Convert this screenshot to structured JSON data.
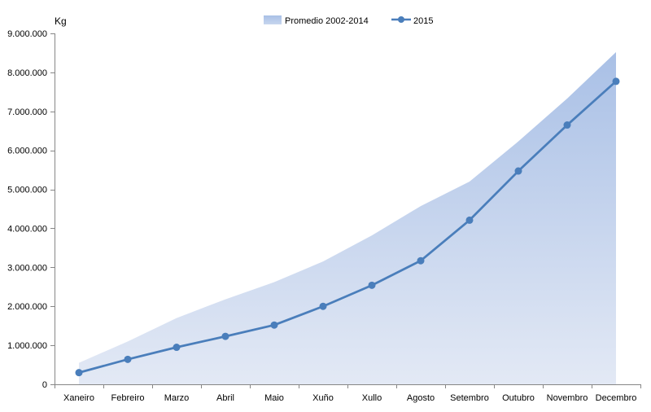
{
  "chart_data": {
    "type": "area",
    "ylabel": "Kg",
    "categories": [
      "Xaneiro",
      "Febreiro",
      "Marzo",
      "Abril",
      "Maio",
      "Xuño",
      "Xullo",
      "Agosto",
      "Setembro",
      "Outubro",
      "Novembro",
      "Decembro"
    ],
    "ylim": [
      0,
      9000000
    ],
    "yticks": [
      0,
      1000000,
      2000000,
      3000000,
      4000000,
      5000000,
      6000000,
      7000000,
      8000000,
      9000000
    ],
    "ytick_labels": [
      "0",
      "1.000.000",
      "2.000.000",
      "3.000.000",
      "4.000.000",
      "5.000.000",
      "6.000.000",
      "7.000.000",
      "8.000.000",
      "9.000.000"
    ],
    "series": [
      {
        "name": "Promedio 2002-2014",
        "type": "area",
        "color": "#a9c0e6",
        "values": [
          550000,
          1100000,
          1700000,
          2180000,
          2620000,
          3150000,
          3820000,
          4570000,
          5200000,
          6230000,
          7330000,
          8520000
        ]
      },
      {
        "name": "2015",
        "type": "line",
        "color": "#4a7ebb",
        "values": [
          300000,
          640000,
          950000,
          1230000,
          1520000,
          2000000,
          2540000,
          3170000,
          4210000,
          5470000,
          6650000,
          7770000
        ]
      }
    ],
    "legend_position": "top",
    "grid": false
  }
}
